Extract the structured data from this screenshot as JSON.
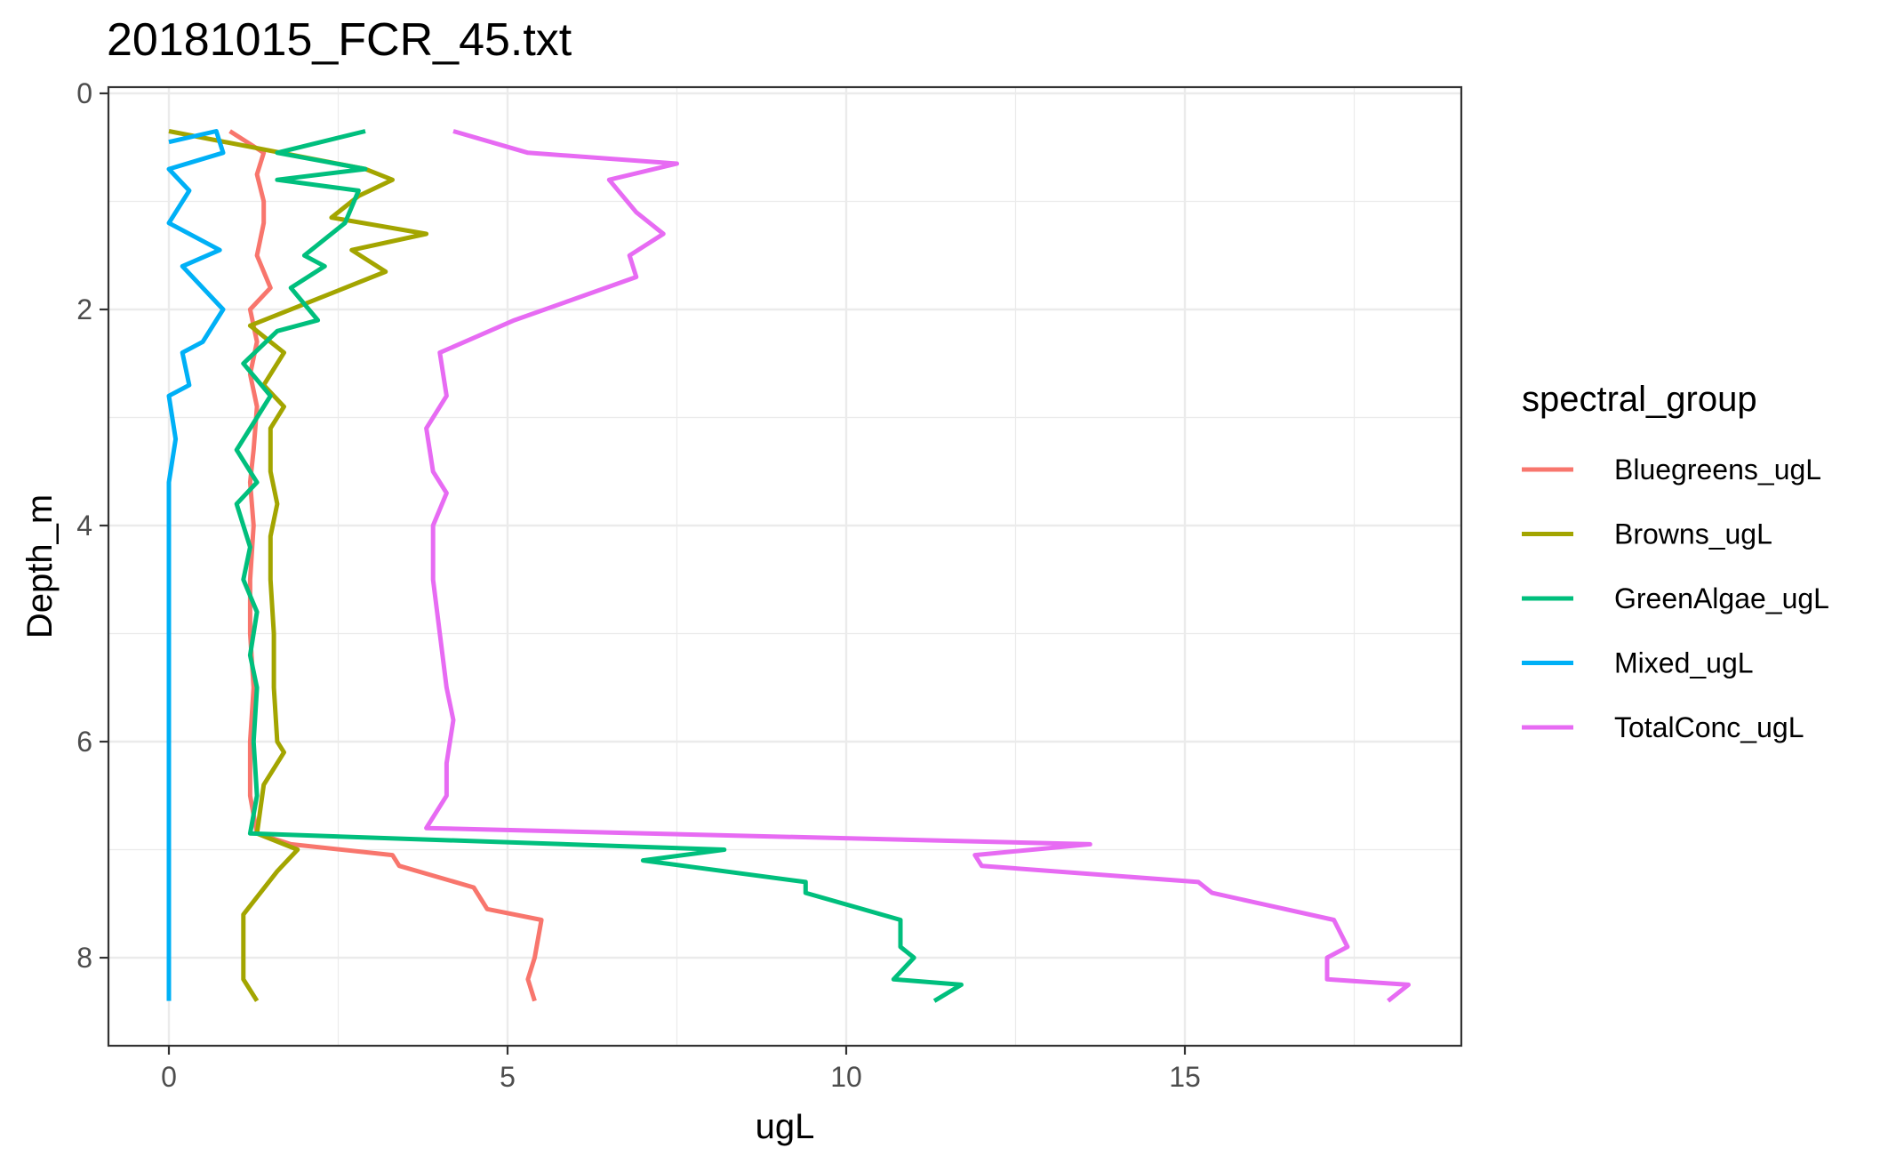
{
  "chart_data": {
    "type": "line",
    "title": "20181015_FCR_45.txt",
    "xlabel": "ugL",
    "ylabel": "Depth_m",
    "xlim": [
      -1.8,
      38.4
    ],
    "ylim": [
      0,
      8.8
    ],
    "y_reversed": true,
    "x_ticks": [
      0,
      5,
      10,
      15
    ],
    "y_ticks": [
      0,
      2,
      4,
      6,
      8
    ],
    "grid": true,
    "legend": {
      "title": "spectral_group",
      "position": "right"
    },
    "series": [
      {
        "name": "Bluegreens_ugL",
        "color": "#F8766D",
        "points": [
          [
            0.9,
            0.35
          ],
          [
            1.4,
            0.55
          ],
          [
            1.3,
            0.75
          ],
          [
            1.4,
            1.0
          ],
          [
            1.4,
            1.2
          ],
          [
            1.3,
            1.5
          ],
          [
            1.5,
            1.8
          ],
          [
            1.2,
            2.0
          ],
          [
            1.3,
            2.3
          ],
          [
            1.2,
            2.6
          ],
          [
            1.3,
            2.9
          ],
          [
            1.25,
            3.3
          ],
          [
            1.2,
            3.6
          ],
          [
            1.25,
            4.0
          ],
          [
            1.2,
            4.5
          ],
          [
            1.2,
            5.0
          ],
          [
            1.25,
            5.5
          ],
          [
            1.2,
            6.0
          ],
          [
            1.2,
            6.5
          ],
          [
            1.3,
            6.85
          ],
          [
            1.8,
            6.95
          ],
          [
            3.3,
            7.05
          ],
          [
            3.4,
            7.15
          ],
          [
            4.5,
            7.35
          ],
          [
            4.7,
            7.55
          ],
          [
            5.5,
            7.65
          ],
          [
            5.4,
            8.0
          ],
          [
            5.3,
            8.2
          ],
          [
            5.4,
            8.4
          ]
        ]
      },
      {
        "name": "Browns_ugL",
        "color": "#A3A500",
        "points": [
          [
            0.0,
            0.35
          ],
          [
            2.9,
            0.7
          ],
          [
            3.3,
            0.8
          ],
          [
            2.8,
            0.95
          ],
          [
            2.4,
            1.15
          ],
          [
            3.8,
            1.3
          ],
          [
            2.7,
            1.45
          ],
          [
            3.2,
            1.65
          ],
          [
            2.4,
            1.85
          ],
          [
            1.2,
            2.15
          ],
          [
            1.7,
            2.4
          ],
          [
            1.4,
            2.7
          ],
          [
            1.7,
            2.9
          ],
          [
            1.5,
            3.1
          ],
          [
            1.5,
            3.5
          ],
          [
            1.6,
            3.8
          ],
          [
            1.5,
            4.1
          ],
          [
            1.5,
            4.5
          ],
          [
            1.55,
            5.0
          ],
          [
            1.55,
            5.5
          ],
          [
            1.6,
            6.0
          ],
          [
            1.7,
            6.1
          ],
          [
            1.4,
            6.4
          ],
          [
            1.3,
            6.85
          ],
          [
            1.9,
            7.0
          ],
          [
            1.6,
            7.2
          ],
          [
            1.1,
            7.6
          ],
          [
            1.1,
            8.2
          ],
          [
            1.3,
            8.4
          ]
        ]
      },
      {
        "name": "GreenAlgae_ugL",
        "color": "#00BF7D",
        "points": [
          [
            2.9,
            0.35
          ],
          [
            1.6,
            0.55
          ],
          [
            2.9,
            0.7
          ],
          [
            1.6,
            0.8
          ],
          [
            2.8,
            0.9
          ],
          [
            2.6,
            1.2
          ],
          [
            2.0,
            1.5
          ],
          [
            2.3,
            1.6
          ],
          [
            1.8,
            1.8
          ],
          [
            2.2,
            2.1
          ],
          [
            1.6,
            2.2
          ],
          [
            1.1,
            2.5
          ],
          [
            1.5,
            2.8
          ],
          [
            1.3,
            3.0
          ],
          [
            1.0,
            3.3
          ],
          [
            1.3,
            3.6
          ],
          [
            1.0,
            3.8
          ],
          [
            1.2,
            4.2
          ],
          [
            1.1,
            4.5
          ],
          [
            1.3,
            4.8
          ],
          [
            1.2,
            5.2
          ],
          [
            1.3,
            5.5
          ],
          [
            1.25,
            6.0
          ],
          [
            1.3,
            6.5
          ],
          [
            1.2,
            6.85
          ],
          [
            8.2,
            7.0
          ],
          [
            7.0,
            7.1
          ],
          [
            9.4,
            7.3
          ],
          [
            9.4,
            7.4
          ],
          [
            10.8,
            7.65
          ],
          [
            10.8,
            7.9
          ],
          [
            11.0,
            8.0
          ],
          [
            10.7,
            8.2
          ],
          [
            11.7,
            8.25
          ],
          [
            11.3,
            8.4
          ]
        ]
      },
      {
        "name": "Mixed_ugL",
        "color": "#00B0F6",
        "points": [
          [
            0.0,
            0.45
          ],
          [
            0.7,
            0.35
          ],
          [
            0.8,
            0.55
          ],
          [
            0.0,
            0.7
          ],
          [
            0.3,
            0.9
          ],
          [
            0.0,
            1.2
          ],
          [
            0.75,
            1.45
          ],
          [
            0.2,
            1.6
          ],
          [
            0.5,
            1.8
          ],
          [
            0.8,
            2.0
          ],
          [
            0.5,
            2.3
          ],
          [
            0.2,
            2.4
          ],
          [
            0.3,
            2.7
          ],
          [
            0.0,
            2.8
          ],
          [
            0.1,
            3.2
          ],
          [
            0.0,
            3.6
          ],
          [
            0.0,
            4.2
          ],
          [
            0.0,
            5.0
          ],
          [
            0.0,
            6.0
          ],
          [
            0.0,
            7.0
          ],
          [
            0.0,
            8.4
          ]
        ]
      },
      {
        "name": "TotalConc_ugL",
        "color": "#E76BF3",
        "points": [
          [
            4.2,
            0.35
          ],
          [
            5.3,
            0.55
          ],
          [
            7.5,
            0.65
          ],
          [
            6.5,
            0.8
          ],
          [
            6.9,
            1.1
          ],
          [
            7.3,
            1.3
          ],
          [
            6.8,
            1.5
          ],
          [
            6.9,
            1.7
          ],
          [
            6.0,
            1.9
          ],
          [
            5.1,
            2.1
          ],
          [
            4.0,
            2.4
          ],
          [
            4.1,
            2.8
          ],
          [
            3.8,
            3.1
          ],
          [
            3.9,
            3.5
          ],
          [
            4.1,
            3.7
          ],
          [
            3.9,
            4.0
          ],
          [
            3.9,
            4.5
          ],
          [
            4.0,
            5.0
          ],
          [
            4.1,
            5.5
          ],
          [
            4.2,
            5.8
          ],
          [
            4.1,
            6.2
          ],
          [
            4.1,
            6.5
          ],
          [
            3.8,
            6.8
          ],
          [
            13.6,
            6.95
          ],
          [
            11.9,
            7.05
          ],
          [
            12.0,
            7.15
          ],
          [
            15.2,
            7.3
          ],
          [
            15.4,
            7.4
          ],
          [
            17.2,
            7.65
          ],
          [
            17.4,
            7.9
          ],
          [
            17.1,
            8.0
          ],
          [
            17.1,
            8.2
          ],
          [
            18.3,
            8.25
          ],
          [
            18.0,
            8.4
          ]
        ]
      }
    ]
  }
}
